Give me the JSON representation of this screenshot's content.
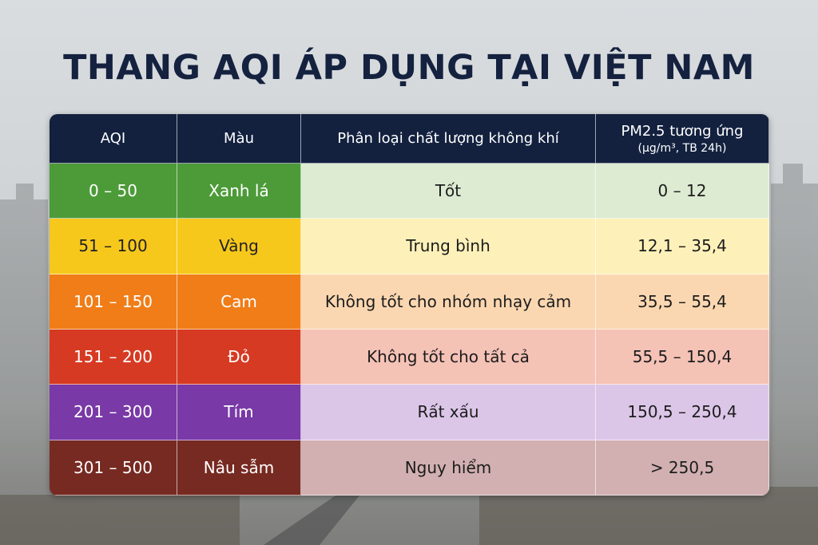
{
  "title": "THANG AQI ÁP DỤNG TẠI VIỆT NAM",
  "table": {
    "headers": [
      "AQI",
      "Màu",
      "Phân loại chất lượng không khí",
      "PM2.5 tương ứng"
    ],
    "header_note": "(µg/m³, TB 24h)",
    "rows": [
      [
        "0 – 50",
        "Xanh lá",
        "Tốt",
        "0 – 12"
      ],
      [
        "51 – 100",
        "Vàng",
        "Trung bình",
        "12,1 – 35,4"
      ],
      [
        "101 – 150",
        "Cam",
        "Không tốt cho nhóm nhạy cảm",
        "35,5 – 55,4"
      ],
      [
        "151 – 200",
        "Đỏ",
        "Không tốt cho tất cả",
        "55,5 – 150,4"
      ],
      [
        "201 – 300",
        "Tím",
        "Rất xấu",
        "150,5 – 250,4"
      ],
      [
        "301 – 500",
        "Nâu sẫm",
        "Nguy hiểm",
        "> 250,5"
      ]
    ]
  }
}
